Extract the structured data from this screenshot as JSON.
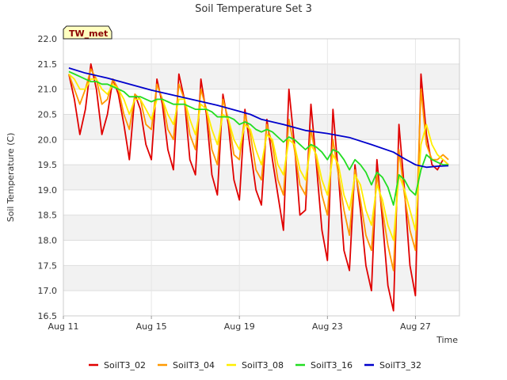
{
  "chart_data": {
    "type": "line",
    "title": "Soil Temperature Set 3",
    "xlabel": "Time",
    "ylabel": "Soil Temperature (C)",
    "site_label": "TW_met",
    "xlim": [
      "2023-08-11",
      "2023-08-29"
    ],
    "ylim": [
      16.5,
      22.0
    ],
    "x_ticks": [
      "Aug 11",
      "Aug 15",
      "Aug 19",
      "Aug 23",
      "Aug 27"
    ],
    "y_ticks": [
      "16.5",
      "17.0",
      "17.5",
      "18.0",
      "18.5",
      "19.0",
      "19.5",
      "20.0",
      "20.5",
      "21.0",
      "21.5",
      "22.0"
    ],
    "grid": true,
    "alternating_bands": true,
    "legend_position": "bottom",
    "series": [
      {
        "name": "SoilT3_02",
        "color": "#e00000",
        "x": [
          "2023-08-11 06:00",
          "2023-08-11 12:00",
          "2023-08-11 18:00",
          "2023-08-12 00:00",
          "2023-08-12 06:00",
          "2023-08-12 12:00",
          "2023-08-12 18:00",
          "2023-08-13 00:00",
          "2023-08-13 06:00",
          "2023-08-13 12:00",
          "2023-08-13 18:00",
          "2023-08-14 00:00",
          "2023-08-14 06:00",
          "2023-08-14 12:00",
          "2023-08-14 18:00",
          "2023-08-15 00:00",
          "2023-08-15 06:00",
          "2023-08-15 12:00",
          "2023-08-15 18:00",
          "2023-08-16 00:00",
          "2023-08-16 06:00",
          "2023-08-16 12:00",
          "2023-08-16 18:00",
          "2023-08-17 00:00",
          "2023-08-17 06:00",
          "2023-08-17 12:00",
          "2023-08-17 18:00",
          "2023-08-18 00:00",
          "2023-08-18 06:00",
          "2023-08-18 12:00",
          "2023-08-18 18:00",
          "2023-08-19 00:00",
          "2023-08-19 06:00",
          "2023-08-19 12:00",
          "2023-08-19 18:00",
          "2023-08-20 00:00",
          "2023-08-20 06:00",
          "2023-08-20 12:00",
          "2023-08-20 18:00",
          "2023-08-21 00:00",
          "2023-08-21 06:00",
          "2023-08-21 12:00",
          "2023-08-21 18:00",
          "2023-08-22 00:00",
          "2023-08-22 06:00",
          "2023-08-22 12:00",
          "2023-08-22 18:00",
          "2023-08-23 00:00",
          "2023-08-23 06:00",
          "2023-08-23 12:00",
          "2023-08-23 18:00",
          "2023-08-24 00:00",
          "2023-08-24 06:00",
          "2023-08-24 12:00",
          "2023-08-24 18:00",
          "2023-08-25 00:00",
          "2023-08-25 06:00",
          "2023-08-25 12:00",
          "2023-08-25 18:00",
          "2023-08-26 00:00",
          "2023-08-26 06:00",
          "2023-08-26 12:00",
          "2023-08-26 18:00",
          "2023-08-27 00:00",
          "2023-08-27 06:00",
          "2023-08-27 12:00",
          "2023-08-27 18:00",
          "2023-08-28 00:00",
          "2023-08-28 06:00",
          "2023-08-28 12:00"
        ],
        "y": [
          21.3,
          20.8,
          20.1,
          20.6,
          21.5,
          21.0,
          20.1,
          20.5,
          21.2,
          20.9,
          20.3,
          19.6,
          20.9,
          20.6,
          19.9,
          19.6,
          21.2,
          20.7,
          19.8,
          19.4,
          21.3,
          20.8,
          19.6,
          19.3,
          21.2,
          20.5,
          19.3,
          18.9,
          20.9,
          20.3,
          19.2,
          18.8,
          20.6,
          19.8,
          19.0,
          18.7,
          20.4,
          19.6,
          18.9,
          18.2,
          21.0,
          19.9,
          18.5,
          18.6,
          20.7,
          19.5,
          18.2,
          17.6,
          20.6,
          19.3,
          17.8,
          17.4,
          19.5,
          18.6,
          17.5,
          17.0,
          19.6,
          18.4,
          17.1,
          16.6,
          20.3,
          19.0,
          17.5,
          16.9,
          21.3,
          20.1,
          19.5,
          19.4,
          19.6,
          19.5
        ]
      },
      {
        "name": "SoilT3_04",
        "color": "#ff9900",
        "x": [
          "2023-08-11 06:00",
          "2023-08-11 12:00",
          "2023-08-11 18:00",
          "2023-08-12 00:00",
          "2023-08-12 06:00",
          "2023-08-12 12:00",
          "2023-08-12 18:00",
          "2023-08-13 00:00",
          "2023-08-13 06:00",
          "2023-08-13 12:00",
          "2023-08-13 18:00",
          "2023-08-14 00:00",
          "2023-08-14 06:00",
          "2023-08-14 12:00",
          "2023-08-14 18:00",
          "2023-08-15 00:00",
          "2023-08-15 06:00",
          "2023-08-15 12:00",
          "2023-08-15 18:00",
          "2023-08-16 00:00",
          "2023-08-16 06:00",
          "2023-08-16 12:00",
          "2023-08-16 18:00",
          "2023-08-17 00:00",
          "2023-08-17 06:00",
          "2023-08-17 12:00",
          "2023-08-17 18:00",
          "2023-08-18 00:00",
          "2023-08-18 06:00",
          "2023-08-18 12:00",
          "2023-08-18 18:00",
          "2023-08-19 00:00",
          "2023-08-19 06:00",
          "2023-08-19 12:00",
          "2023-08-19 18:00",
          "2023-08-20 00:00",
          "2023-08-20 06:00",
          "2023-08-20 12:00",
          "2023-08-20 18:00",
          "2023-08-21 00:00",
          "2023-08-21 06:00",
          "2023-08-21 12:00",
          "2023-08-21 18:00",
          "2023-08-22 00:00",
          "2023-08-22 06:00",
          "2023-08-22 12:00",
          "2023-08-22 18:00",
          "2023-08-23 00:00",
          "2023-08-23 06:00",
          "2023-08-23 12:00",
          "2023-08-23 18:00",
          "2023-08-24 00:00",
          "2023-08-24 06:00",
          "2023-08-24 12:00",
          "2023-08-24 18:00",
          "2023-08-25 00:00",
          "2023-08-25 06:00",
          "2023-08-25 12:00",
          "2023-08-25 18:00",
          "2023-08-26 00:00",
          "2023-08-26 06:00",
          "2023-08-26 12:00",
          "2023-08-26 18:00",
          "2023-08-27 00:00",
          "2023-08-27 06:00",
          "2023-08-27 12:00",
          "2023-08-27 18:00",
          "2023-08-28 00:00",
          "2023-08-28 06:00",
          "2023-08-28 12:00"
        ],
        "y": [
          21.3,
          21.0,
          20.7,
          21.0,
          21.4,
          21.2,
          20.7,
          20.8,
          21.2,
          21.0,
          20.5,
          20.2,
          20.9,
          20.8,
          20.3,
          20.2,
          21.1,
          20.8,
          20.2,
          20.0,
          21.1,
          20.8,
          20.1,
          19.8,
          21.0,
          20.6,
          19.8,
          19.5,
          20.8,
          20.4,
          19.7,
          19.6,
          20.5,
          20.1,
          19.4,
          19.2,
          20.3,
          19.9,
          19.2,
          18.9,
          20.4,
          19.8,
          19.1,
          18.9,
          20.2,
          19.6,
          18.9,
          18.5,
          20.0,
          19.3,
          18.6,
          18.1,
          19.4,
          18.8,
          18.1,
          17.8,
          19.3,
          18.6,
          17.9,
          17.4,
          19.8,
          18.9,
          18.2,
          17.8,
          21.0,
          19.9,
          19.6,
          19.6,
          19.7,
          19.6
        ]
      },
      {
        "name": "SoilT3_08",
        "color": "#ffee00",
        "x": [
          "2023-08-11 06:00",
          "2023-08-11 12:00",
          "2023-08-11 18:00",
          "2023-08-12 00:00",
          "2023-08-12 06:00",
          "2023-08-12 12:00",
          "2023-08-12 18:00",
          "2023-08-13 00:00",
          "2023-08-13 06:00",
          "2023-08-13 12:00",
          "2023-08-13 18:00",
          "2023-08-14 00:00",
          "2023-08-14 06:00",
          "2023-08-14 12:00",
          "2023-08-14 18:00",
          "2023-08-15 00:00",
          "2023-08-15 06:00",
          "2023-08-15 12:00",
          "2023-08-15 18:00",
          "2023-08-16 00:00",
          "2023-08-16 06:00",
          "2023-08-16 12:00",
          "2023-08-16 18:00",
          "2023-08-17 00:00",
          "2023-08-17 06:00",
          "2023-08-17 12:00",
          "2023-08-17 18:00",
          "2023-08-18 00:00",
          "2023-08-18 06:00",
          "2023-08-18 12:00",
          "2023-08-18 18:00",
          "2023-08-19 00:00",
          "2023-08-19 06:00",
          "2023-08-19 12:00",
          "2023-08-19 18:00",
          "2023-08-20 00:00",
          "2023-08-20 06:00",
          "2023-08-20 12:00",
          "2023-08-20 18:00",
          "2023-08-21 00:00",
          "2023-08-21 06:00",
          "2023-08-21 12:00",
          "2023-08-21 18:00",
          "2023-08-22 00:00",
          "2023-08-22 06:00",
          "2023-08-22 12:00",
          "2023-08-22 18:00",
          "2023-08-23 00:00",
          "2023-08-23 06:00",
          "2023-08-23 12:00",
          "2023-08-23 18:00",
          "2023-08-24 00:00",
          "2023-08-24 06:00",
          "2023-08-24 12:00",
          "2023-08-24 18:00",
          "2023-08-25 00:00",
          "2023-08-25 06:00",
          "2023-08-25 12:00",
          "2023-08-25 18:00",
          "2023-08-26 00:00",
          "2023-08-26 06:00",
          "2023-08-26 12:00",
          "2023-08-26 18:00",
          "2023-08-27 00:00",
          "2023-08-27 06:00",
          "2023-08-27 12:00",
          "2023-08-27 18:00",
          "2023-08-28 00:00",
          "2023-08-28 06:00",
          "2023-08-28 12:00"
        ],
        "y": [
          21.3,
          21.2,
          21.0,
          21.0,
          21.2,
          21.2,
          21.0,
          20.9,
          21.1,
          21.0,
          20.8,
          20.5,
          20.8,
          20.8,
          20.6,
          20.4,
          20.8,
          20.8,
          20.5,
          20.3,
          20.8,
          20.8,
          20.4,
          20.1,
          20.7,
          20.6,
          20.2,
          19.9,
          20.5,
          20.4,
          20.0,
          19.8,
          20.3,
          20.2,
          19.8,
          19.5,
          20.1,
          20.0,
          19.5,
          19.3,
          20.0,
          19.9,
          19.4,
          19.2,
          19.9,
          19.7,
          19.2,
          18.9,
          19.7,
          19.5,
          18.9,
          18.6,
          19.3,
          19.1,
          18.6,
          18.3,
          19.1,
          18.8,
          18.3,
          18.0,
          19.3,
          19.0,
          18.6,
          18.2,
          19.9,
          20.3,
          19.9,
          19.7,
          19.6,
          19.5
        ]
      },
      {
        "name": "SoilT3_16",
        "color": "#22dd22",
        "x": [
          "2023-08-11 06:00",
          "2023-08-11 12:00",
          "2023-08-11 18:00",
          "2023-08-12 00:00",
          "2023-08-12 06:00",
          "2023-08-12 12:00",
          "2023-08-12 18:00",
          "2023-08-13 00:00",
          "2023-08-13 06:00",
          "2023-08-13 12:00",
          "2023-08-13 18:00",
          "2023-08-14 00:00",
          "2023-08-14 06:00",
          "2023-08-14 12:00",
          "2023-08-14 18:00",
          "2023-08-15 00:00",
          "2023-08-15 06:00",
          "2023-08-15 12:00",
          "2023-08-15 18:00",
          "2023-08-16 00:00",
          "2023-08-16 06:00",
          "2023-08-16 12:00",
          "2023-08-16 18:00",
          "2023-08-17 00:00",
          "2023-08-17 06:00",
          "2023-08-17 12:00",
          "2023-08-17 18:00",
          "2023-08-18 00:00",
          "2023-08-18 06:00",
          "2023-08-18 12:00",
          "2023-08-18 18:00",
          "2023-08-19 00:00",
          "2023-08-19 06:00",
          "2023-08-19 12:00",
          "2023-08-19 18:00",
          "2023-08-20 00:00",
          "2023-08-20 06:00",
          "2023-08-20 12:00",
          "2023-08-20 18:00",
          "2023-08-21 00:00",
          "2023-08-21 06:00",
          "2023-08-21 12:00",
          "2023-08-21 18:00",
          "2023-08-22 00:00",
          "2023-08-22 06:00",
          "2023-08-22 12:00",
          "2023-08-22 18:00",
          "2023-08-23 00:00",
          "2023-08-23 06:00",
          "2023-08-23 12:00",
          "2023-08-23 18:00",
          "2023-08-24 00:00",
          "2023-08-24 06:00",
          "2023-08-24 12:00",
          "2023-08-24 18:00",
          "2023-08-25 00:00",
          "2023-08-25 06:00",
          "2023-08-25 12:00",
          "2023-08-25 18:00",
          "2023-08-26 00:00",
          "2023-08-26 06:00",
          "2023-08-26 12:00",
          "2023-08-26 18:00",
          "2023-08-27 00:00",
          "2023-08-27 06:00",
          "2023-08-27 12:00",
          "2023-08-27 18:00",
          "2023-08-28 00:00",
          "2023-08-28 06:00",
          "2023-08-28 12:00"
        ],
        "y": [
          21.35,
          21.3,
          21.25,
          21.2,
          21.15,
          21.15,
          21.1,
          21.1,
          21.05,
          21.0,
          20.95,
          20.85,
          20.85,
          20.85,
          20.8,
          20.75,
          20.8,
          20.8,
          20.75,
          20.7,
          20.7,
          20.7,
          20.65,
          20.6,
          20.6,
          20.6,
          20.55,
          20.45,
          20.45,
          20.45,
          20.4,
          20.3,
          20.35,
          20.3,
          20.2,
          20.15,
          20.2,
          20.15,
          20.05,
          19.95,
          20.05,
          20.0,
          19.9,
          19.8,
          19.9,
          19.85,
          19.75,
          19.6,
          19.8,
          19.75,
          19.6,
          19.4,
          19.6,
          19.5,
          19.35,
          19.1,
          19.35,
          19.25,
          19.05,
          18.7,
          19.3,
          19.2,
          19.0,
          18.9,
          19.4,
          19.7,
          19.6,
          19.55,
          19.5,
          19.5
        ]
      },
      {
        "name": "SoilT3_32",
        "color": "#0000cc",
        "x": [
          "2023-08-11 06:00",
          "2023-08-12 00:00",
          "2023-08-13 00:00",
          "2023-08-14 00:00",
          "2023-08-15 00:00",
          "2023-08-16 00:00",
          "2023-08-17 00:00",
          "2023-08-18 00:00",
          "2023-08-19 00:00",
          "2023-08-19 12:00",
          "2023-08-20 00:00",
          "2023-08-21 00:00",
          "2023-08-22 00:00",
          "2023-08-23 00:00",
          "2023-08-24 00:00",
          "2023-08-25 00:00",
          "2023-08-26 00:00",
          "2023-08-26 12:00",
          "2023-08-27 00:00",
          "2023-08-27 12:00",
          "2023-08-28 00:00",
          "2023-08-28 12:00"
        ],
        "y": [
          21.42,
          21.32,
          21.22,
          21.1,
          20.98,
          20.88,
          20.78,
          20.68,
          20.56,
          20.5,
          20.4,
          20.3,
          20.18,
          20.12,
          20.04,
          19.9,
          19.75,
          19.62,
          19.5,
          19.45,
          19.47,
          19.48
        ]
      }
    ]
  }
}
